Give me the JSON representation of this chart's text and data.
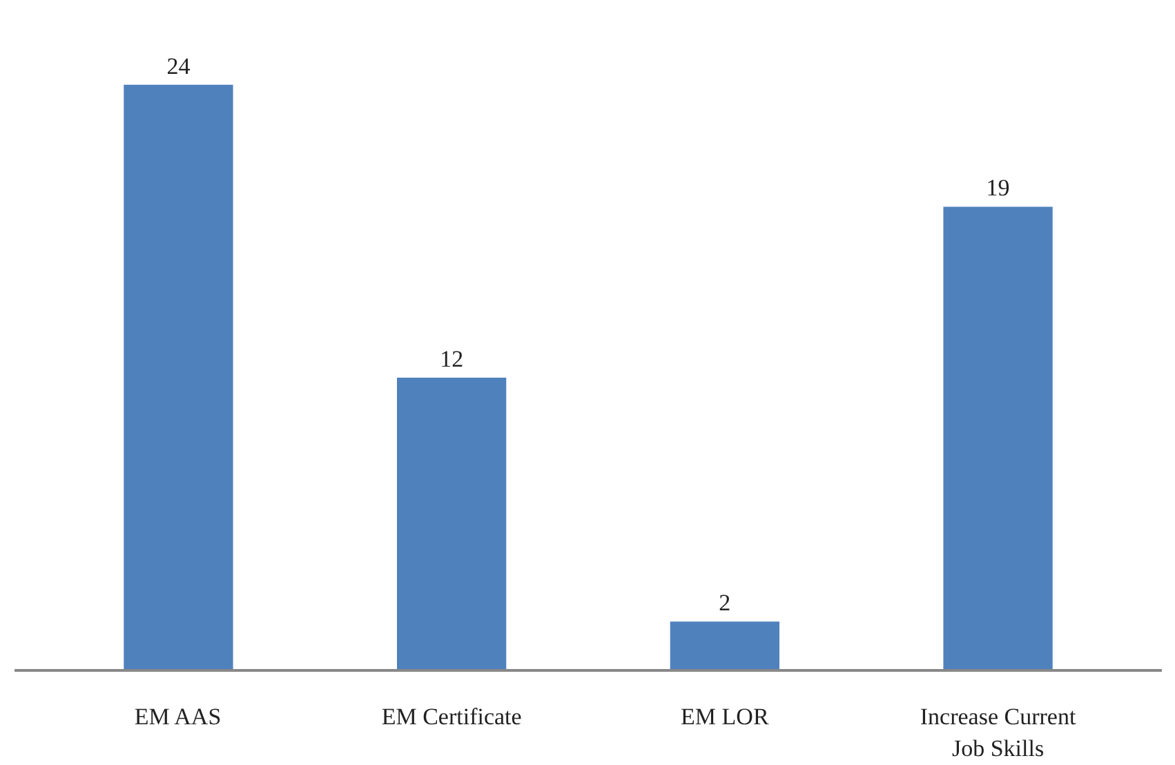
{
  "chart_data": {
    "type": "bar",
    "categories": [
      "EM AAS",
      "EM Certificate",
      "EM LOR",
      "Increase Current Job Skills"
    ],
    "values": [
      24,
      12,
      2,
      19
    ],
    "color": "#4f81bd",
    "data_labels": true
  }
}
